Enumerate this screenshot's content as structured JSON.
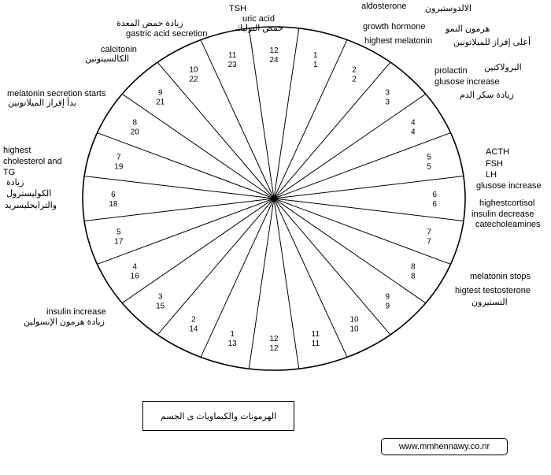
{
  "hours": [
    {
      "inner": "12",
      "outer": "24"
    },
    {
      "inner": "1",
      "outer": "1"
    },
    {
      "inner": "2",
      "outer": "2"
    },
    {
      "inner": "3",
      "outer": "3"
    },
    {
      "inner": "4",
      "outer": "4"
    },
    {
      "inner": "5",
      "outer": "5"
    },
    {
      "inner": "6",
      "outer": "6"
    },
    {
      "inner": "7",
      "outer": "7"
    },
    {
      "inner": "8",
      "outer": "8"
    },
    {
      "inner": "9",
      "outer": "9"
    },
    {
      "inner": "10",
      "outer": "10"
    },
    {
      "inner": "11",
      "outer": "11"
    },
    {
      "inner": "12",
      "outer": "12"
    },
    {
      "inner": "1",
      "outer": "13"
    },
    {
      "inner": "2",
      "outer": "14"
    },
    {
      "inner": "3",
      "outer": "15"
    },
    {
      "inner": "4",
      "outer": "16"
    },
    {
      "inner": "5",
      "outer": "17"
    },
    {
      "inner": "6",
      "outer": "18"
    },
    {
      "inner": "7",
      "outer": "19"
    },
    {
      "inner": "8",
      "outer": "20"
    },
    {
      "inner": "9",
      "outer": "21"
    },
    {
      "inner": "10",
      "outer": "22"
    },
    {
      "inner": "11",
      "outer": "23"
    }
  ],
  "labels": {
    "tsh": "TSH",
    "uric_acid": "uric acid",
    "uric_acid_ar": "حمض البوليك",
    "aldosterone": "aldosterone",
    "aldosterone_ar": "الالدوستيرون",
    "growth_hormone": "growth hormone",
    "growth_hormone_ar": "هرمون النمو",
    "highest_melatonin": "highest melatonin",
    "highest_melatonin_ar": "أعلى إفراز للميلاتونين",
    "gastric_acid_ar": "زيادة حمض المعدة",
    "gastric_acid": "gastric acid  secretion",
    "calcitonin": "calcitonin",
    "calcitonin_ar": "الكالسيتونين",
    "melatonin_starts": "melatonin secretion starts",
    "melatonin_starts_ar": "بدأ إفراز الميلاتونين",
    "cholesterol_1": "highest",
    "cholesterol_2": "cholesterol and",
    "cholesterol_3": "TG",
    "cholesterol_ar_1": "زيادة",
    "cholesterol_ar_2": "الكوليسترول",
    "cholesterol_ar_3": "والترايجليسريد",
    "prolactin_ar": "البرولاكتين",
    "prolactin": "prolactin",
    "glucose_inc_1": "glusose increase",
    "glucose_inc_1_ar": "زيادة سكر الدم",
    "acth": "ACTH",
    "fsh": "FSH",
    "lh": "LH",
    "glucose_inc_2": "glusose increase",
    "cortisol": "highestcortisol",
    "insulin_dec": "insulin decrease",
    "catecholamines": "catecholeamines",
    "melatonin_stops": "melatonin stops",
    "testosterone": "higtest testosterone",
    "testosterone_ar": "التستيرون",
    "insulin_inc": "insulin increase",
    "insulin_inc_ar": "زيادة هرمون الإنسولين"
  },
  "caption": "الهرمونات والكيماويات ى الجسم",
  "website": "www.mmhennawy.co.nr"
}
